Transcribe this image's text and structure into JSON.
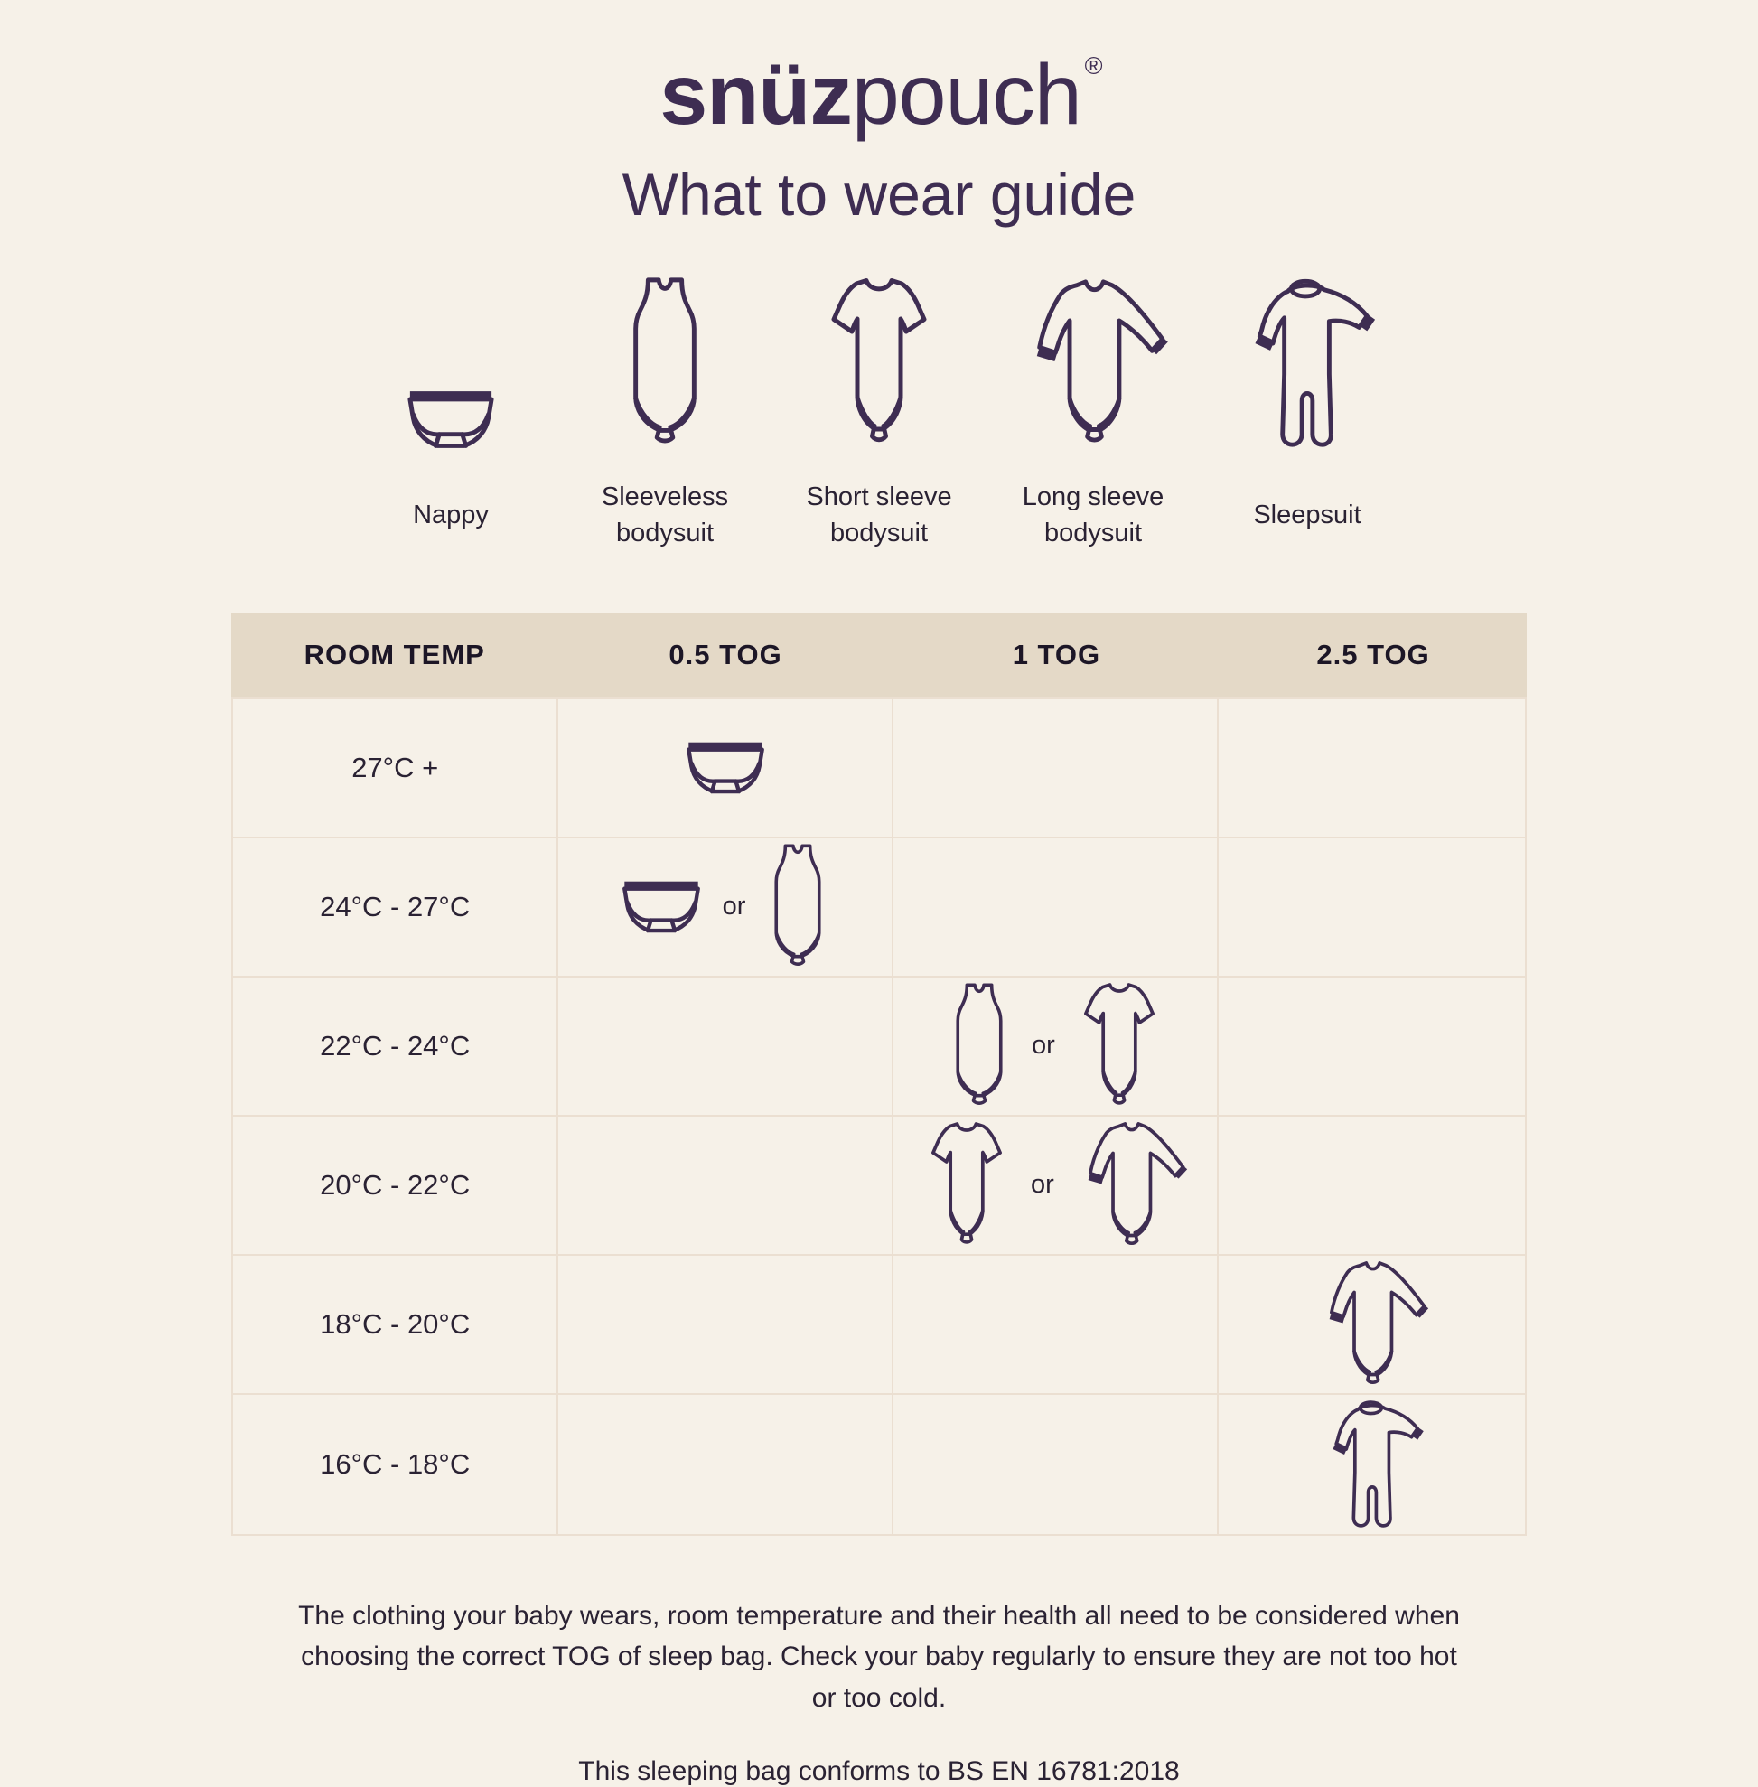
{
  "page": {
    "colors": {
      "background": "#f6f1e8",
      "ink": "#3e2d52",
      "header_bg": "#e4d9c7",
      "grid_line": "#ebdfd1",
      "text": "#2a2233"
    }
  },
  "logo": {
    "bold": "snüz",
    "light": "pouch",
    "registered": "®"
  },
  "title": "What to wear guide",
  "legend": {
    "items": [
      {
        "icon": "nappy",
        "label": "Nappy"
      },
      {
        "icon": "sleeveless-bodysuit",
        "label": "Sleeveless bodysuit"
      },
      {
        "icon": "short-sleeve-bodysuit",
        "label": "Short sleeve bodysuit"
      },
      {
        "icon": "long-sleeve-bodysuit",
        "label": "Long sleeve bodysuit"
      },
      {
        "icon": "sleepsuit",
        "label": "Sleepsuit"
      }
    ]
  },
  "table": {
    "columns": [
      "ROOM TEMP",
      "0.5 TOG",
      "1 TOG",
      "2.5 TOG"
    ],
    "or_label": "or",
    "rows": [
      {
        "temp": "27°C +",
        "cells": [
          [
            "nappy"
          ],
          [],
          []
        ]
      },
      {
        "temp": "24°C - 27°C",
        "cells": [
          [
            "nappy",
            "sleeveless-bodysuit"
          ],
          [],
          []
        ]
      },
      {
        "temp": "22°C - 24°C",
        "cells": [
          [],
          [
            "sleeveless-bodysuit",
            "short-sleeve-bodysuit"
          ],
          []
        ]
      },
      {
        "temp": "20°C - 22°C",
        "cells": [
          [],
          [
            "short-sleeve-bodysuit",
            "long-sleeve-bodysuit"
          ],
          []
        ]
      },
      {
        "temp": "18°C - 20°C",
        "cells": [
          [],
          [],
          [
            "long-sleeve-bodysuit"
          ]
        ]
      },
      {
        "temp": "16°C - 18°C",
        "cells": [
          [],
          [],
          [
            "sleepsuit"
          ]
        ]
      }
    ]
  },
  "footer": {
    "note": "The clothing your baby wears, room temperature and their health all need to be considered when choosing the correct TOG of sleep bag. Check your baby regularly to ensure they are not too hot or too cold.",
    "conformity": "This sleeping bag conforms to BS EN 16781:2018"
  }
}
